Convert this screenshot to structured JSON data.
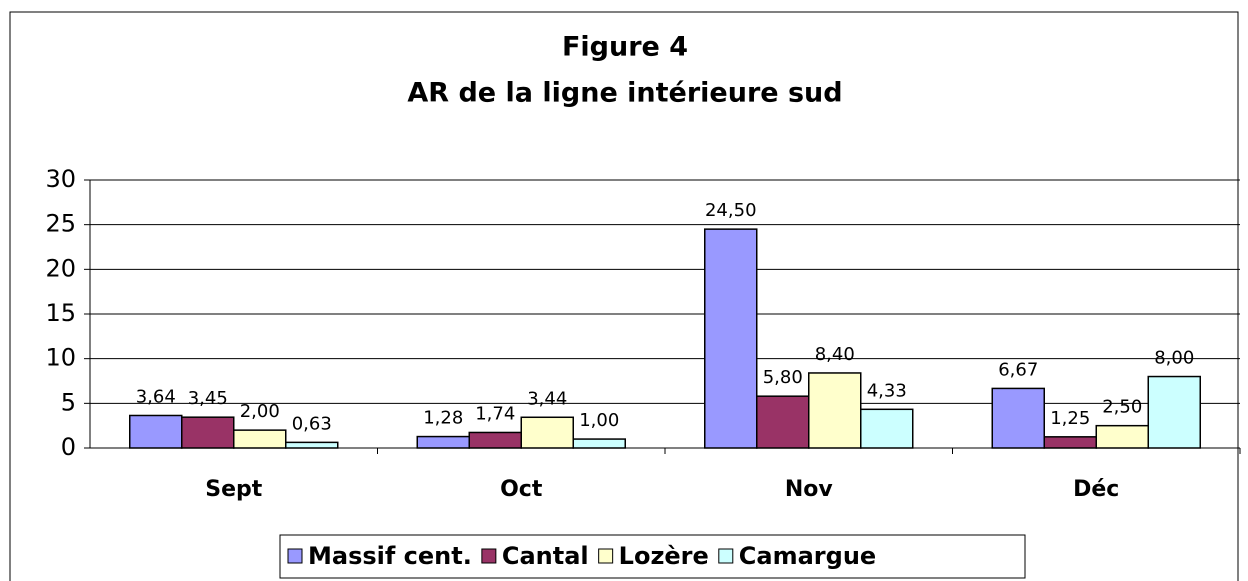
{
  "chart_data": {
    "type": "bar",
    "title": "Figure 4",
    "subtitle": "AR de la ligne intérieure sud",
    "categories": [
      "Sept",
      "Oct",
      "Nov",
      "Déc"
    ],
    "series": [
      {
        "name": "Massif  cent.",
        "color": "#9999ff",
        "values": [
          3.64,
          1.28,
          24.5,
          6.67
        ],
        "value_labels": [
          "3,64",
          "1,28",
          "24,50",
          "6,67"
        ]
      },
      {
        "name": "Cantal",
        "color": "#993366",
        "values": [
          3.45,
          1.74,
          5.8,
          1.25
        ],
        "value_labels": [
          "3,45",
          "1,74",
          "5,80",
          "1,25"
        ]
      },
      {
        "name": "Lozère",
        "color": "#ffffcc",
        "values": [
          2.0,
          3.44,
          8.4,
          2.5
        ],
        "value_labels": [
          "2,00",
          "3,44",
          "8,40",
          "2,50"
        ]
      },
      {
        "name": "Camargue",
        "color": "#ccffff",
        "values": [
          0.63,
          1.0,
          4.33,
          8.0
        ],
        "value_labels": [
          "0,63",
          "1,00",
          "4,33",
          "8,00"
        ]
      }
    ],
    "ylim": [
      0,
      30
    ],
    "yticks": [
      0,
      5,
      10,
      15,
      20,
      25,
      30
    ],
    "grid": true,
    "legend": "bottom"
  }
}
